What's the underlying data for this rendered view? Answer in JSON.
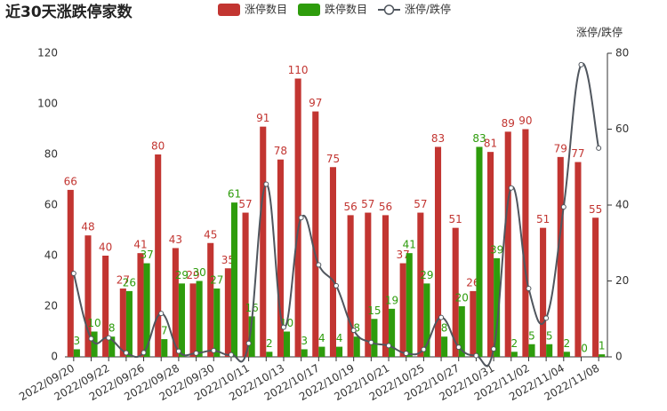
{
  "chart_data": {
    "type": "bar",
    "title": "近30天涨跌停家数",
    "categories": [
      "2022/09/20",
      null,
      "2022/09/22",
      null,
      "2022/09/26",
      null,
      "2022/09/28",
      null,
      "2022/09/30",
      null,
      "2022/10/11",
      null,
      "2022/10/13",
      null,
      "2022/10/17",
      null,
      "2022/10/19",
      null,
      "2022/10/21",
      null,
      "2022/10/25",
      null,
      "2022/10/27",
      null,
      "2022/10/31",
      null,
      "2022/11/02",
      null,
      "2022/11/04",
      null,
      "2022/11/08"
    ],
    "series": [
      {
        "name": "涨停数目",
        "type": "bar",
        "color": "#c23531",
        "values": [
          66,
          48,
          40,
          27,
          41,
          80,
          43,
          29,
          45,
          35,
          57,
          91,
          78,
          110,
          97,
          75,
          56,
          57,
          56,
          37,
          57,
          83,
          51,
          26,
          81,
          89,
          90,
          51,
          79,
          77,
          55
        ]
      },
      {
        "name": "跌停数目",
        "type": "bar",
        "color": "#2e9c0c",
        "values": [
          3,
          10,
          8,
          26,
          37,
          7,
          29,
          30,
          27,
          61,
          16,
          2,
          10,
          3,
          4,
          4,
          8,
          15,
          19,
          41,
          29,
          8,
          20,
          83,
          39,
          2,
          5,
          5,
          2,
          0,
          1
        ]
      },
      {
        "name": "涨停/跌停",
        "type": "line",
        "axis": "y2",
        "color": "#50565e",
        "values": [
          22,
          4.8,
          5,
          1.04,
          1.11,
          11.43,
          1.48,
          0.97,
          1.67,
          0.57,
          3.56,
          45.5,
          7.8,
          36.67,
          24.25,
          18.75,
          7,
          3.8,
          2.95,
          0.9,
          1.97,
          10.38,
          2.55,
          0.31,
          2.08,
          44.5,
          18,
          10.2,
          39.5,
          77,
          55
        ]
      }
    ],
    "ylim": [
      0,
      120
    ],
    "yticks": [
      0,
      20,
      40,
      60,
      80,
      100,
      120
    ],
    "y2lim": [
      0,
      80
    ],
    "y2ticks": [
      0,
      20,
      40,
      60,
      80
    ],
    "y2_label": "涨停/跌停"
  }
}
